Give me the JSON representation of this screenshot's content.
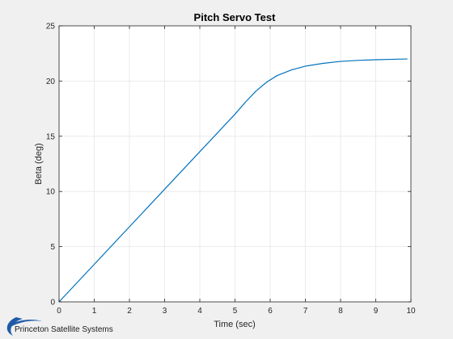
{
  "chart_data": {
    "type": "line",
    "title": "Pitch Servo Test",
    "xlabel": "Time (sec)",
    "ylabel": "Beta (deg)",
    "xlim": [
      0,
      10
    ],
    "ylim": [
      0,
      25
    ],
    "xticks": [
      0,
      1,
      2,
      3,
      4,
      5,
      6,
      7,
      8,
      9,
      10
    ],
    "yticks": [
      0,
      5,
      10,
      15,
      20,
      25
    ],
    "grid": true,
    "series": [
      {
        "color": "#0072bd",
        "x": [
          0,
          1,
          2,
          3,
          4,
          5,
          5.3,
          5.6,
          5.9,
          6.2,
          6.6,
          7.0,
          7.5,
          8.0,
          8.5,
          9.0,
          9.5,
          9.9
        ],
        "y": [
          0,
          3.4,
          6.8,
          10.2,
          13.6,
          17.0,
          18.1,
          19.1,
          19.9,
          20.5,
          21.0,
          21.35,
          21.6,
          21.78,
          21.87,
          21.93,
          21.97,
          22.0
        ]
      }
    ]
  },
  "branding": {
    "company": "Princeton Satellite Systems",
    "logo": "crescent-swoosh-logo",
    "logo_color": "#1f5aa6"
  },
  "colors": {
    "figure_background": "#f0f0f0",
    "axes_background": "#ffffff",
    "line": "#0072bd",
    "grid": "#e6e6e6"
  }
}
